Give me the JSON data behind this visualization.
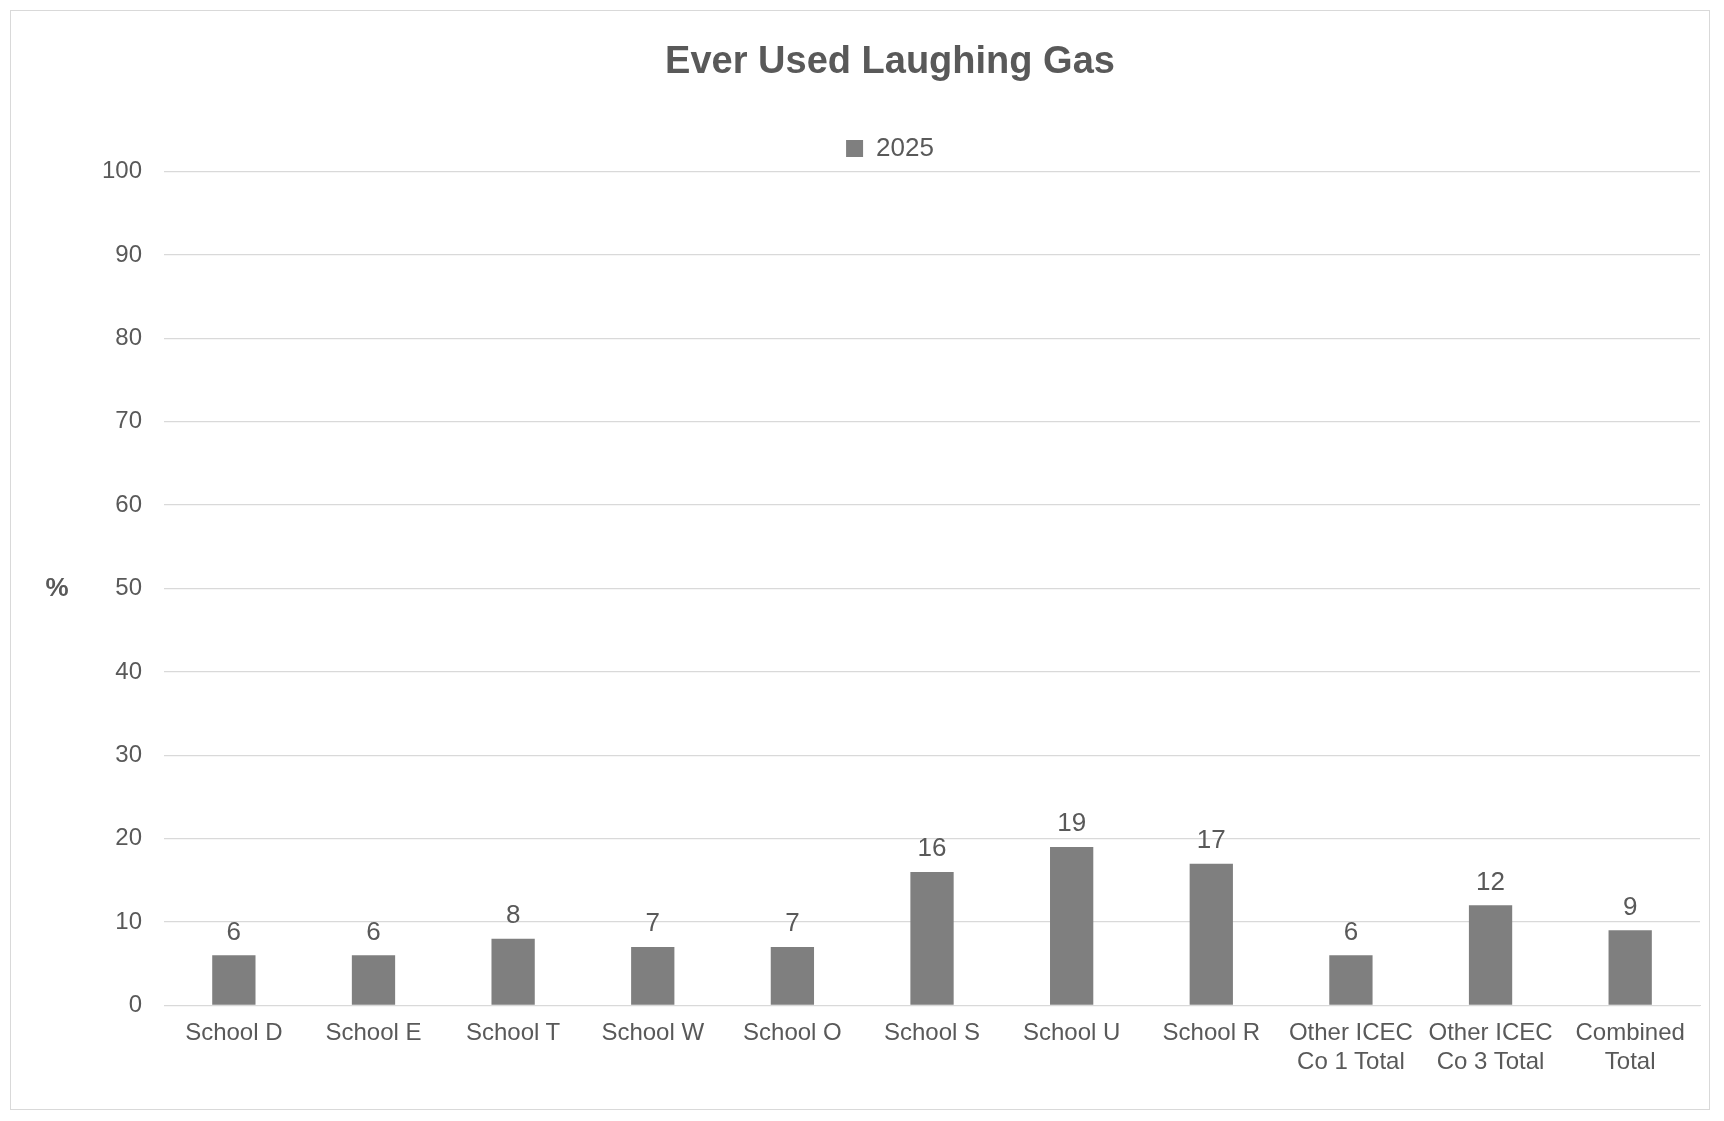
{
  "chart_data": {
    "type": "bar",
    "title": "Ever Used Laughing Gas",
    "ylabel": "%",
    "categories": [
      "School D",
      "School E",
      "School T",
      "School W",
      "School O",
      "School S",
      "School U",
      "School R",
      "Other ICEC Co 1 Total",
      "Other ICEC Co 3 Total",
      "Combined Total"
    ],
    "series": [
      {
        "name": "2025",
        "color": "#7f7f7f",
        "values": [
          6,
          6,
          8,
          7,
          7,
          16,
          19,
          17,
          6,
          12,
          9
        ]
      }
    ],
    "ylim": [
      0,
      100
    ],
    "yticks": [
      0,
      10,
      20,
      30,
      40,
      50,
      60,
      70,
      80,
      90,
      100
    ],
    "grid": "y",
    "legend": "top",
    "data_labels": true
  }
}
